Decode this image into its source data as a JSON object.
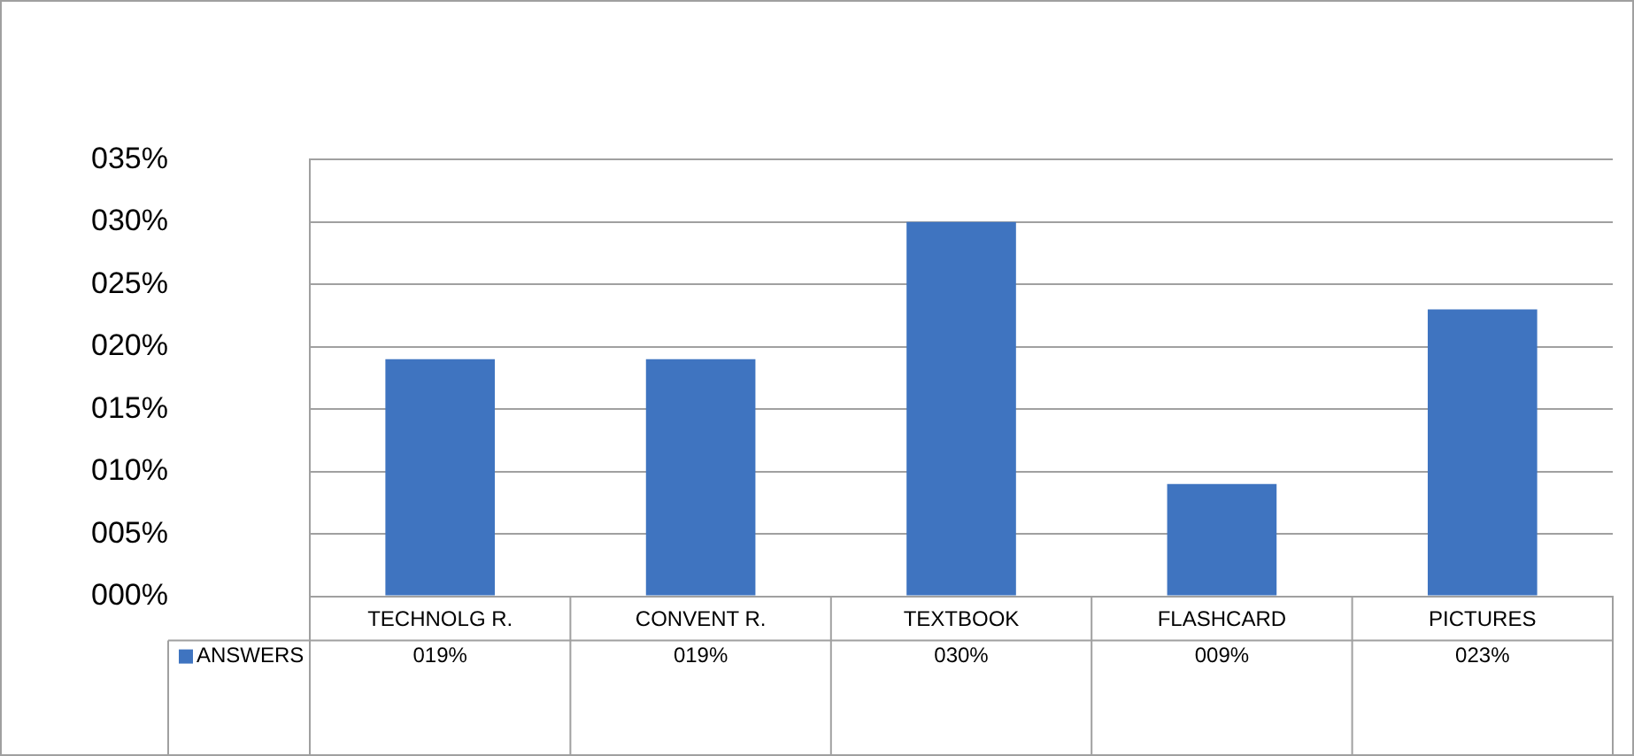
{
  "chart_data": {
    "type": "bar",
    "categories": [
      "TECHNOLG R.",
      "CONVENT R.",
      "TEXTBOOK",
      "FLASHCARD",
      "PICTURES"
    ],
    "series": [
      {
        "name": "ANSWERS",
        "color": "#3f74c0",
        "values": [
          19,
          19,
          30,
          9,
          23
        ],
        "value_labels": [
          "019%",
          "019%",
          "030%",
          "009%",
          "023%"
        ]
      }
    ],
    "ylim": [
      0,
      35
    ],
    "yticks": [
      {
        "value": 0,
        "label": "000%"
      },
      {
        "value": 5,
        "label": "005%"
      },
      {
        "value": 10,
        "label": "010%"
      },
      {
        "value": 15,
        "label": "015%"
      },
      {
        "value": 20,
        "label": "020%"
      },
      {
        "value": 25,
        "label": "025%"
      },
      {
        "value": 30,
        "label": "030%"
      },
      {
        "value": 35,
        "label": "035%"
      }
    ],
    "grid": "y",
    "legend": "bottom left"
  }
}
